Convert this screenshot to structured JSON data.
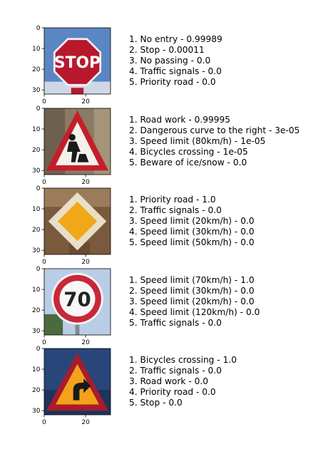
{
  "chart_data": [
    {
      "type": "image",
      "xticks": [
        0,
        20
      ],
      "yticks": [
        0,
        10,
        20,
        30
      ],
      "xlim": [
        0,
        32
      ],
      "ylim": [
        0,
        32
      ],
      "predictions": [
        {
          "rank": 1,
          "label": "No entry",
          "prob": "0.99989"
        },
        {
          "rank": 2,
          "label": "Stop",
          "prob": "0.00011"
        },
        {
          "rank": 3,
          "label": "No passing",
          "prob": "0.0"
        },
        {
          "rank": 4,
          "label": "Traffic signals",
          "prob": "0.0"
        },
        {
          "rank": 5,
          "label": "Priority road",
          "prob": "0.0"
        }
      ]
    },
    {
      "type": "image",
      "xticks": [
        0,
        20
      ],
      "yticks": [
        0,
        10,
        20,
        30
      ],
      "xlim": [
        0,
        32
      ],
      "ylim": [
        0,
        32
      ],
      "predictions": [
        {
          "rank": 1,
          "label": "Road work",
          "prob": "0.99995"
        },
        {
          "rank": 2,
          "label": "Dangerous curve to the right",
          "prob": "3e-05"
        },
        {
          "rank": 3,
          "label": "Speed limit (80km/h)",
          "prob": "1e-05"
        },
        {
          "rank": 4,
          "label": "Bicycles crossing",
          "prob": "1e-05"
        },
        {
          "rank": 5,
          "label": "Beware of ice/snow",
          "prob": "0.0"
        }
      ]
    },
    {
      "type": "image",
      "xticks": [
        0,
        20
      ],
      "yticks": [
        0,
        10,
        20,
        30
      ],
      "xlim": [
        0,
        32
      ],
      "ylim": [
        0,
        32
      ],
      "predictions": [
        {
          "rank": 1,
          "label": "Priority road",
          "prob": "1.0"
        },
        {
          "rank": 2,
          "label": "Traffic signals",
          "prob": "0.0"
        },
        {
          "rank": 3,
          "label": "Speed limit (20km/h)",
          "prob": "0.0"
        },
        {
          "rank": 4,
          "label": "Speed limit (30km/h)",
          "prob": "0.0"
        },
        {
          "rank": 5,
          "label": "Speed limit (50km/h)",
          "prob": "0.0"
        }
      ]
    },
    {
      "type": "image",
      "xticks": [
        0,
        20
      ],
      "yticks": [
        0,
        10,
        20,
        30
      ],
      "xlim": [
        0,
        32
      ],
      "ylim": [
        0,
        32
      ],
      "predictions": [
        {
          "rank": 1,
          "label": "Speed limit (70km/h)",
          "prob": "1.0"
        },
        {
          "rank": 2,
          "label": "Speed limit (30km/h)",
          "prob": "0.0"
        },
        {
          "rank": 3,
          "label": "Speed limit (20km/h)",
          "prob": "0.0"
        },
        {
          "rank": 4,
          "label": "Speed limit (120km/h)",
          "prob": "0.0"
        },
        {
          "rank": 5,
          "label": "Traffic signals",
          "prob": "0.0"
        }
      ]
    },
    {
      "type": "image",
      "xticks": [
        0,
        20
      ],
      "yticks": [
        0,
        10,
        20,
        30
      ],
      "xlim": [
        0,
        32
      ],
      "ylim": [
        0,
        32
      ],
      "predictions": [
        {
          "rank": 1,
          "label": "Bicycles crossing",
          "prob": "1.0"
        },
        {
          "rank": 2,
          "label": "Traffic signals",
          "prob": "0.0"
        },
        {
          "rank": 3,
          "label": "Road work",
          "prob": "0.0"
        },
        {
          "rank": 4,
          "label": "Priority road",
          "prob": "0.0"
        },
        {
          "rank": 5,
          "label": "Stop",
          "prob": "0.0"
        }
      ]
    }
  ],
  "images": [
    {
      "icon": "stop-sign-icon",
      "sign_text": "STOP"
    },
    {
      "icon": "road-work-sign-icon",
      "sign_text": ""
    },
    {
      "icon": "priority-road-sign-icon",
      "sign_text": ""
    },
    {
      "icon": "speed-limit-sign-icon",
      "sign_text": "70"
    },
    {
      "icon": "curve-right-sign-icon",
      "sign_text": ""
    }
  ]
}
